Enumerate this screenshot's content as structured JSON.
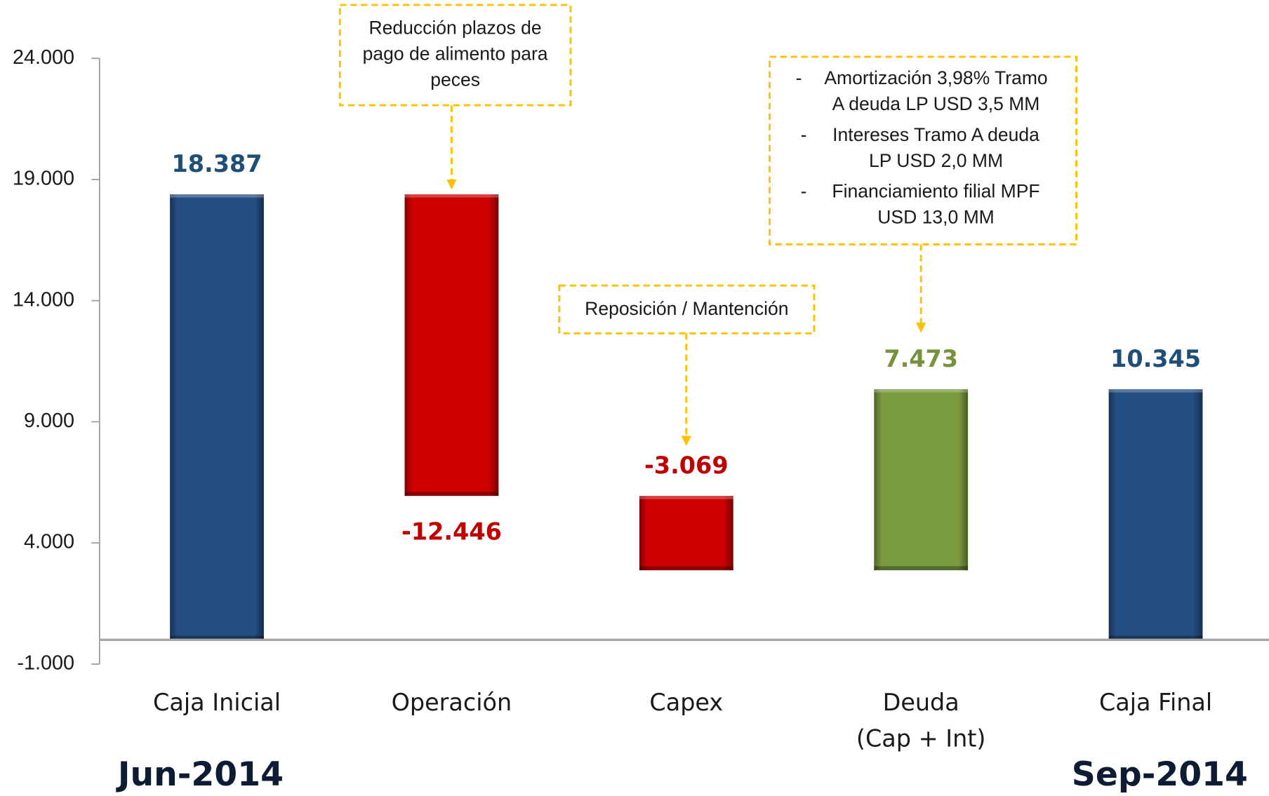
{
  "chart_data": {
    "type": "waterfall",
    "categories": [
      [
        "Caja Inicial"
      ],
      [
        "Operación"
      ],
      [
        "Capex"
      ],
      [
        "Deuda",
        "(Cap + Int)"
      ],
      [
        "Caja Final"
      ]
    ],
    "values": [
      18387,
      -12446,
      -3069,
      7473,
      10345
    ],
    "value_labels": [
      "18.387",
      "-12.446",
      "-3.069",
      "7.473",
      "10.345"
    ],
    "measures": [
      "absolute",
      "relative",
      "relative",
      "relative",
      "total"
    ],
    "colors": [
      "#254e82",
      "#cc0000",
      "#cc0000",
      "#7a9a3e",
      "#254e82"
    ],
    "label_colors": [
      "#1f4e79",
      "#c00000",
      "#c00000",
      "#76923c",
      "#1f4e79"
    ],
    "label_positions": [
      "above",
      "below",
      "above",
      "above",
      "above"
    ],
    "ylim": [
      -1000,
      24000
    ],
    "yticks": [
      {
        "value": -1000,
        "label": "-1.000"
      },
      {
        "value": 4000,
        "label": "4.000"
      },
      {
        "value": 9000,
        "label": "9.000"
      },
      {
        "value": 14000,
        "label": "14.000"
      },
      {
        "value": 19000,
        "label": "19.000"
      },
      {
        "value": 24000,
        "label": "24.000"
      }
    ],
    "period_labels": [
      "Jun-2014",
      "Sep-2014"
    ],
    "annotations": [
      {
        "category": 1,
        "lines": [
          "Reducción plazos de",
          "pago de alimento para",
          "peces"
        ]
      },
      {
        "category": 2,
        "lines": [
          "Reposición / Mantención"
        ]
      },
      {
        "category": 3,
        "bullet": "-",
        "items": [
          [
            "Amortización 3,98% Tramo",
            "A deuda LP USD 3,5 MM"
          ],
          [
            "Intereses Tramo A deuda",
            "LP USD 2,0 MM"
          ],
          [
            "Financiamiento filial MPF",
            "USD 13,0 MM"
          ]
        ]
      }
    ]
  }
}
